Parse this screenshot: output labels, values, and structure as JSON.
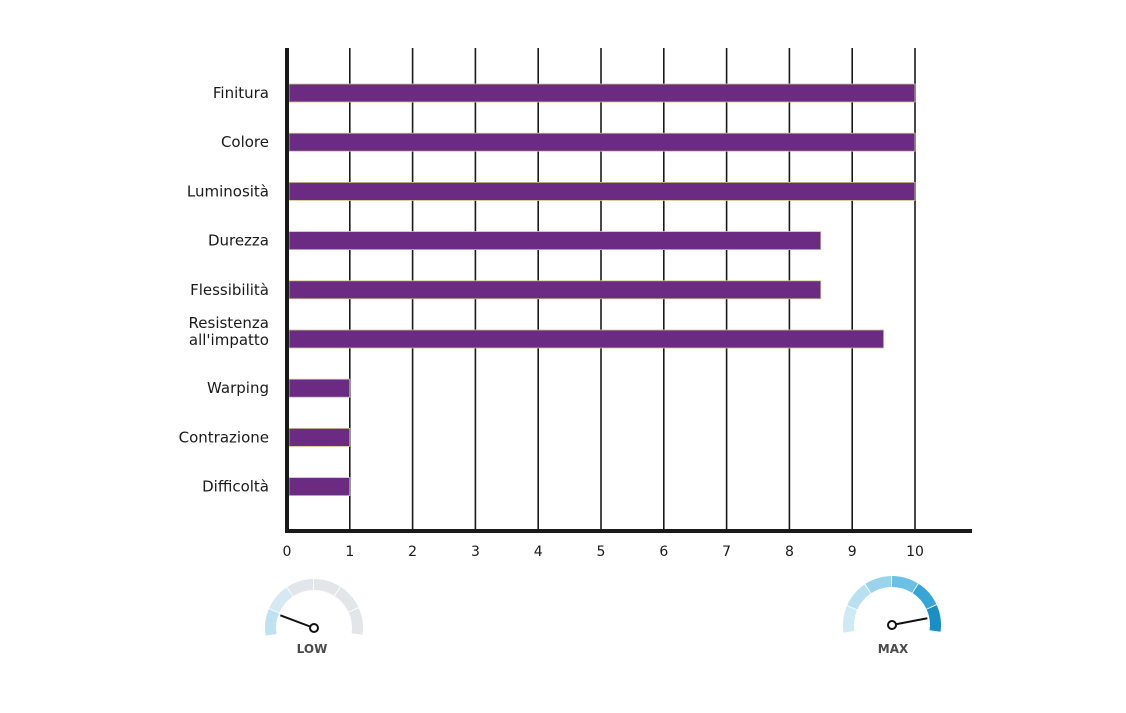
{
  "chart_data": {
    "type": "bar",
    "orientation": "horizontal",
    "categories": [
      "Finitura",
      "Colore",
      "Luminosità",
      "Durezza",
      "Flessibilità",
      "Resistenza\nall'impatto",
      "Warping",
      "Contrazione",
      "Difficoltà"
    ],
    "values": [
      10,
      10,
      10,
      8.5,
      8.5,
      9.5,
      1,
      1,
      1
    ],
    "xlim": [
      0,
      11
    ],
    "xticks": [
      "0",
      "1",
      "2",
      "3",
      "4",
      "5",
      "6",
      "7",
      "8",
      "9",
      "10"
    ],
    "grid": "vertical",
    "bar_color": "#6b2b82",
    "title": "",
    "xlabel": "",
    "ylabel": ""
  },
  "gauges": {
    "low": {
      "label": "LOW",
      "level": 0.15,
      "color": "#b8dff0"
    },
    "max": {
      "label": "MAX",
      "level": 0.9,
      "color": "#1a8fc4"
    }
  }
}
